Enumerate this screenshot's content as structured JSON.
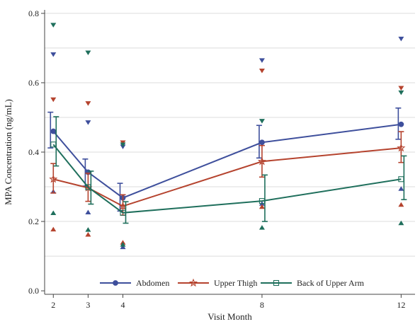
{
  "chart_data": {
    "type": "line",
    "xlabel": "Visit Month",
    "ylabel": "MPA Concentration (ng/mL)",
    "x_ticks": [
      2,
      3,
      4,
      8,
      12
    ],
    "x_tick_labels": [
      "2",
      "3",
      "4",
      "8",
      "12"
    ],
    "y_ticks": [
      0.0,
      0.2,
      0.4,
      0.6,
      0.8
    ],
    "y_tick_labels": [
      "0.0",
      "0.2",
      "0.4",
      "0.6",
      "0.8"
    ],
    "xlim": [
      1.75,
      12.4
    ],
    "ylim": [
      -0.01,
      0.81
    ],
    "grid": "horizontal",
    "legend_position": "bottom-center",
    "series": [
      {
        "name": "Abdomen",
        "color": "#3e4f9c",
        "marker": "circle",
        "mean": [
          {
            "x": 2,
            "y": 0.46,
            "lo": 0.412,
            "hi": 0.515
          },
          {
            "x": 3,
            "y": 0.342,
            "lo": 0.302,
            "hi": 0.38
          },
          {
            "x": 4,
            "y": 0.268,
            "lo": 0.23,
            "hi": 0.31
          },
          {
            "x": 8,
            "y": 0.428,
            "lo": 0.383,
            "hi": 0.477
          },
          {
            "x": 12,
            "y": 0.48,
            "lo": 0.437,
            "hi": 0.527
          }
        ],
        "extremes": [
          {
            "x": 2,
            "min": 0.287,
            "max": 0.681
          },
          {
            "x": 3,
            "min": 0.227,
            "max": 0.485
          },
          {
            "x": 4,
            "min": 0.127,
            "max": 0.415
          },
          {
            "x": 8,
            "min": 0.252,
            "max": 0.664
          },
          {
            "x": 12,
            "min": 0.295,
            "max": 0.726
          }
        ]
      },
      {
        "name": "Upper Thigh",
        "color": "#b5432e",
        "marker": "star",
        "mean": [
          {
            "x": 2,
            "y": 0.322,
            "lo": 0.282,
            "hi": 0.367
          },
          {
            "x": 3,
            "y": 0.297,
            "lo": 0.258,
            "hi": 0.339
          },
          {
            "x": 4,
            "y": 0.244,
            "lo": 0.218,
            "hi": 0.277
          },
          {
            "x": 8,
            "y": 0.373,
            "lo": 0.328,
            "hi": 0.419
          },
          {
            "x": 12,
            "y": 0.412,
            "lo": 0.37,
            "hi": 0.459
          }
        ],
        "extremes": [
          {
            "x": 2,
            "min": 0.178,
            "max": 0.551
          },
          {
            "x": 3,
            "min": 0.163,
            "max": 0.54
          },
          {
            "x": 4,
            "min": 0.14,
            "max": 0.427
          },
          {
            "x": 8,
            "min": 0.243,
            "max": 0.634
          },
          {
            "x": 12,
            "min": 0.249,
            "max": 0.584
          }
        ]
      },
      {
        "name": "Back of Upper Arm",
        "color": "#1f6f5c",
        "marker": "square",
        "mean": [
          {
            "x": 2,
            "y": 0.422,
            "lo": 0.36,
            "hi": 0.502
          },
          {
            "x": 3,
            "y": 0.299,
            "lo": 0.25,
            "hi": 0.345
          },
          {
            "x": 4,
            "y": 0.225,
            "lo": 0.195,
            "hi": 0.257
          },
          {
            "x": 8,
            "y": 0.259,
            "lo": 0.2,
            "hi": 0.334
          },
          {
            "x": 12,
            "y": 0.322,
            "lo": 0.263,
            "hi": 0.389
          }
        ],
        "extremes": [
          {
            "x": 2,
            "min": 0.225,
            "max": 0.766
          },
          {
            "x": 3,
            "min": 0.177,
            "max": 0.686
          },
          {
            "x": 4,
            "min": 0.134,
            "max": 0.421
          },
          {
            "x": 8,
            "min": 0.183,
            "max": 0.489
          },
          {
            "x": 12,
            "min": 0.196,
            "max": 0.571
          }
        ]
      }
    ]
  }
}
